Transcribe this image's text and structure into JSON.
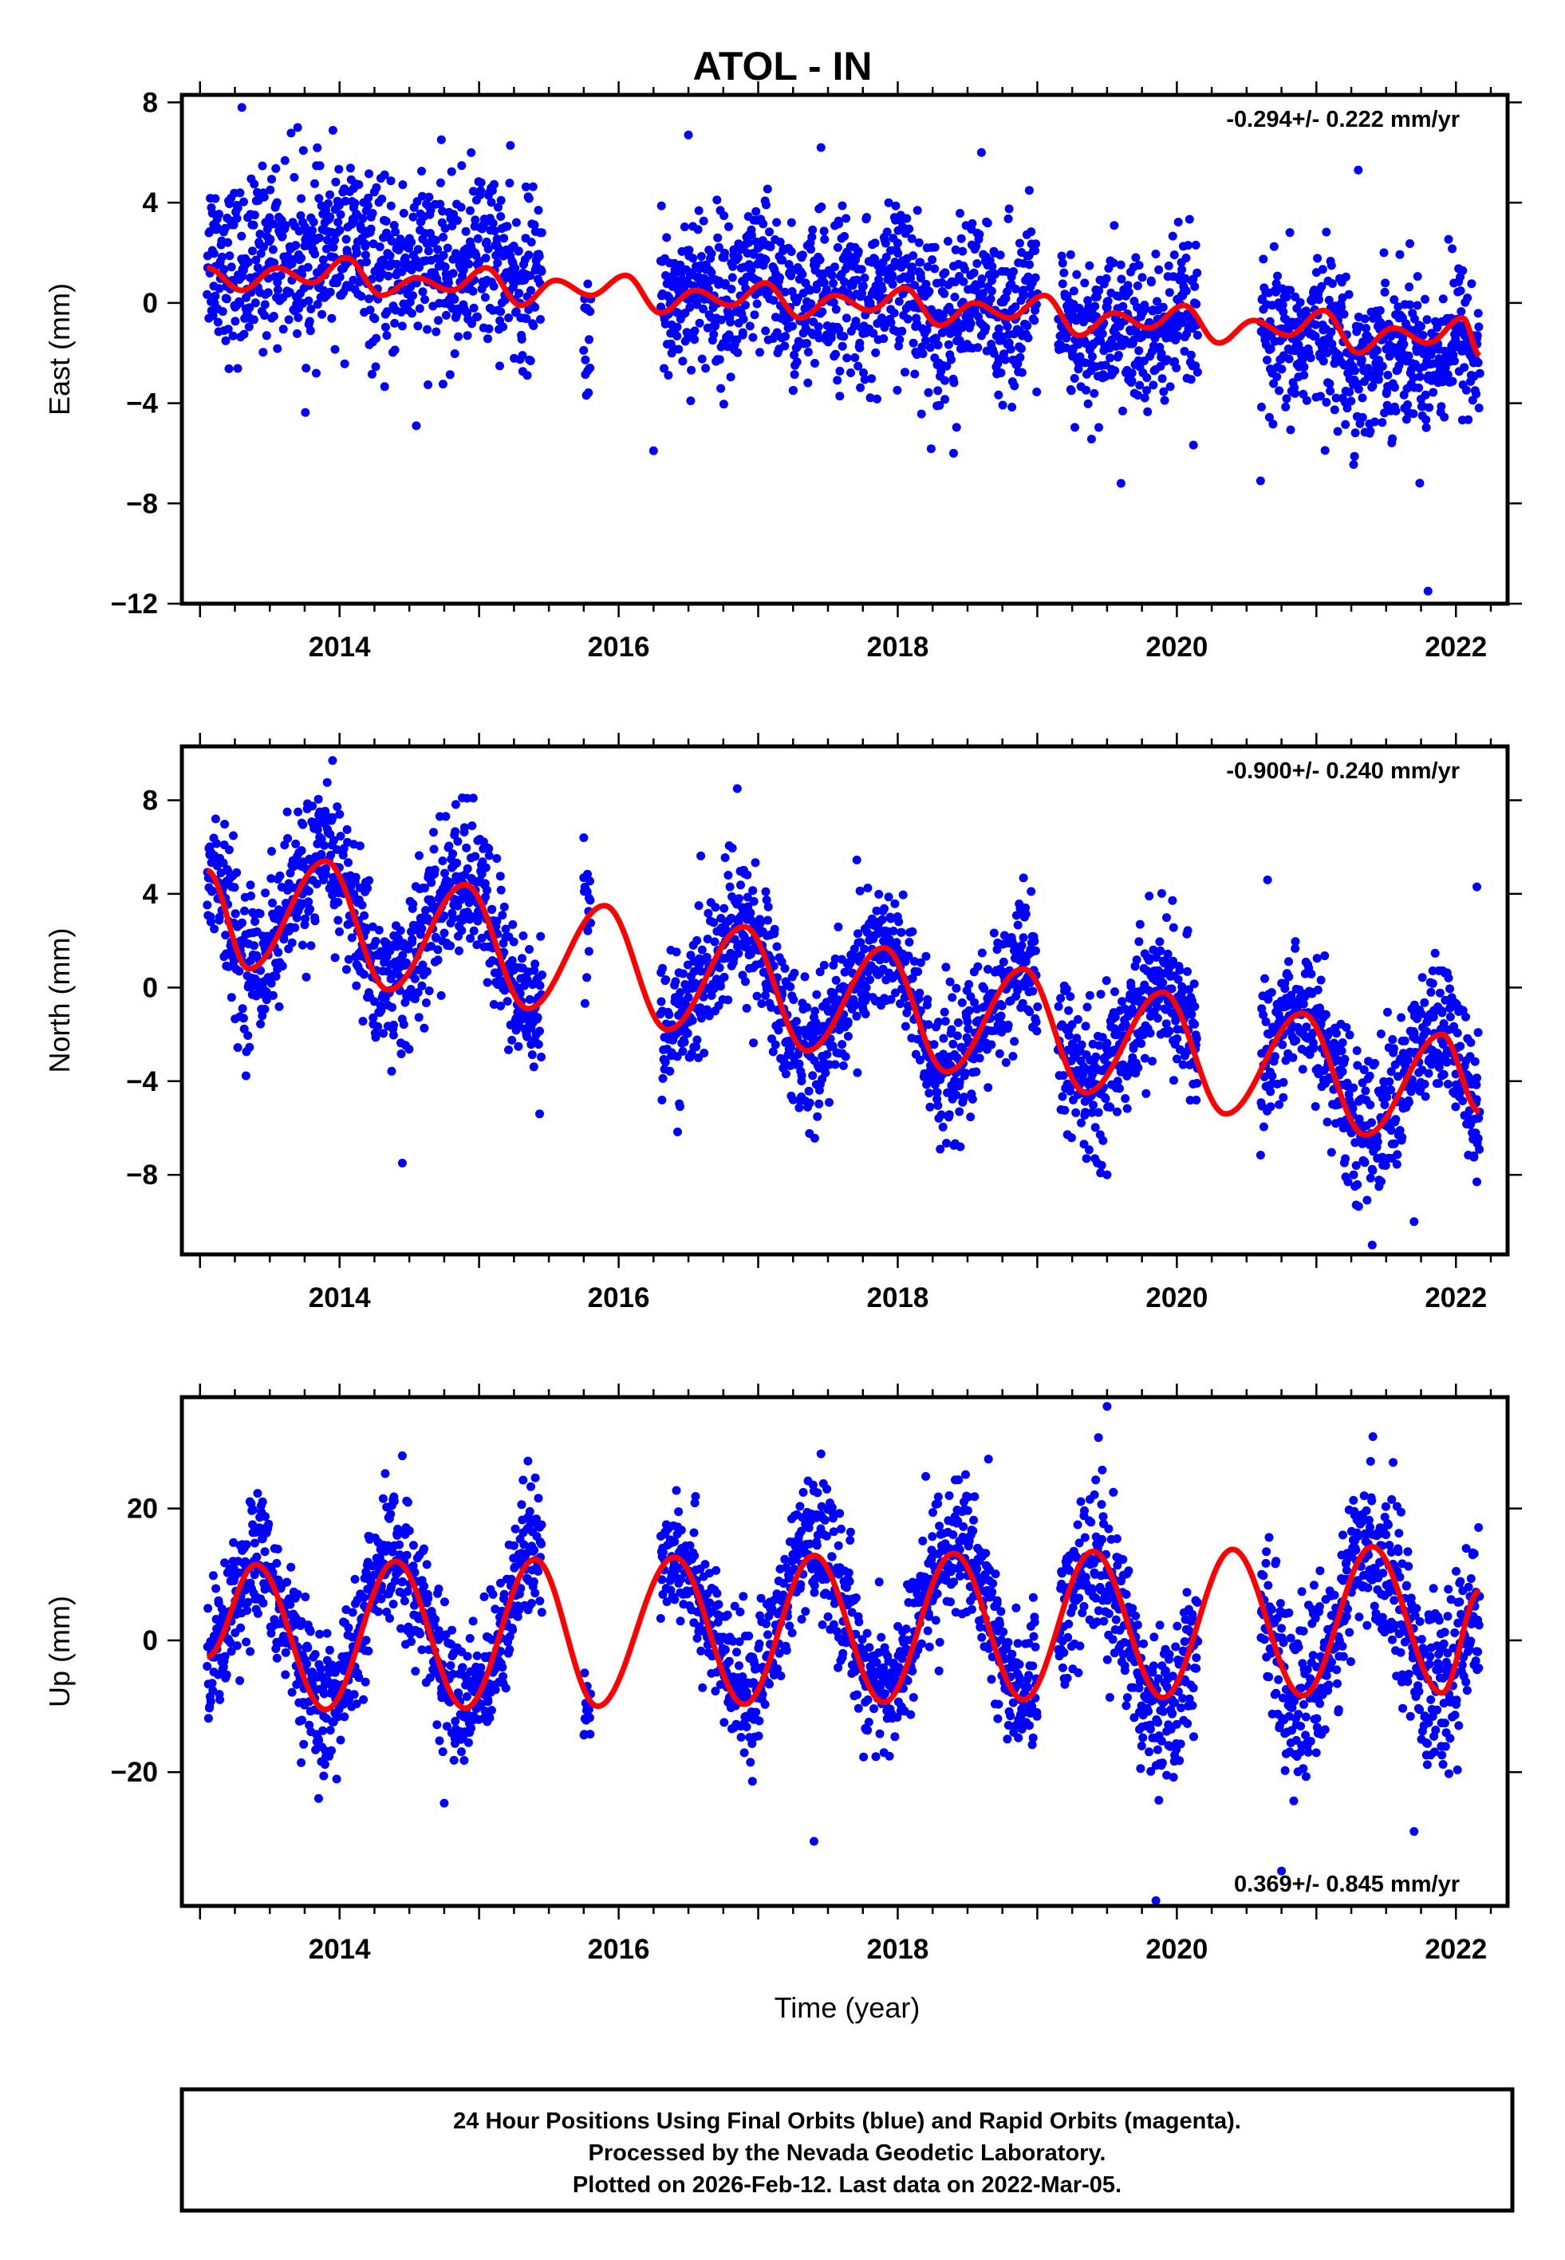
{
  "title": "ATOL - IN",
  "footer": {
    "lines": [
      "24 Hour Positions Using Final Orbits (blue) and Rapid Orbits (magenta).",
      "Processed by the Nevada Geodetic Laboratory.",
      "Plotted on 2026-Feb-12. Last data on 2022-Mar-05."
    ]
  },
  "colors": {
    "points": "#0000ff",
    "model": "#ff0000",
    "axes": "#000000"
  },
  "chart_data": [
    {
      "type": "scatter",
      "component": "East",
      "ylabel": "East (mm)",
      "xlabel": "",
      "rate_text": "-0.294+/- 0.222 mm/yr",
      "rate_position": "top-right",
      "xlim": [
        2012.87,
        2022.37
      ],
      "ylim": [
        -12.0,
        8.3
      ],
      "xticks": [
        2014,
        2016,
        2018,
        2020,
        2022
      ],
      "xtick_labels": [
        "2014",
        "2016",
        "2018",
        "2020",
        "2022"
      ],
      "yticks": [
        8,
        4,
        0,
        -4,
        -8,
        -12
      ],
      "ytick_labels": [
        "8",
        "4",
        "0",
        "−4",
        "−8",
        "−12"
      ],
      "model": {
        "name": "fit",
        "x": [
          2013.05,
          2013.3,
          2013.55,
          2013.8,
          2014.05,
          2014.3,
          2014.55,
          2014.8,
          2015.05,
          2015.3,
          2015.55,
          2015.8,
          2016.05,
          2016.3,
          2016.55,
          2016.8,
          2017.05,
          2017.3,
          2017.55,
          2017.8,
          2018.05,
          2018.3,
          2018.55,
          2018.8,
          2019.05,
          2019.3,
          2019.55,
          2019.8,
          2020.05,
          2020.3,
          2020.55,
          2020.8,
          2021.05,
          2021.3,
          2021.55,
          2021.8,
          2022.05,
          2022.17
        ],
        "y": [
          1.4,
          0.5,
          1.4,
          0.8,
          1.8,
          0.3,
          1.0,
          0.5,
          1.4,
          -0.1,
          0.9,
          0.3,
          1.1,
          -0.4,
          0.5,
          -0.1,
          0.8,
          -0.6,
          0.3,
          -0.3,
          0.6,
          -0.9,
          0.0,
          -0.6,
          0.3,
          -1.3,
          -0.4,
          -1.0,
          -0.1,
          -1.6,
          -0.7,
          -1.3,
          -0.3,
          -2.0,
          -1.0,
          -1.6,
          -0.6,
          -2.1
        ]
      },
      "data_segments": [
        {
          "start": 2013.05,
          "end": 2015.45,
          "center_offset": 0.7,
          "spread": 1.7
        },
        {
          "start": 2015.75,
          "end": 2015.8,
          "center_offset": -1.5,
          "spread": 1.2
        },
        {
          "start": 2016.3,
          "end": 2019.0,
          "center_offset": 0.2,
          "spread": 1.6
        },
        {
          "start": 2019.15,
          "end": 2020.15,
          "center_offset": -0.5,
          "spread": 1.6
        },
        {
          "start": 2020.6,
          "end": 2022.17,
          "center_offset": -0.6,
          "spread": 1.5
        }
      ],
      "outliers": [
        {
          "x": 2013.3,
          "y": 7.8
        },
        {
          "x": 2013.7,
          "y": 7.0
        },
        {
          "x": 2016.5,
          "y": 6.7
        },
        {
          "x": 2017.45,
          "y": 6.2
        },
        {
          "x": 2018.6,
          "y": 6.0
        },
        {
          "x": 2021.3,
          "y": 5.3
        },
        {
          "x": 2016.25,
          "y": -5.9
        },
        {
          "x": 2018.4,
          "y": -6.0
        },
        {
          "x": 2019.6,
          "y": -7.2
        },
        {
          "x": 2020.6,
          "y": -7.1
        },
        {
          "x": 2021.8,
          "y": -11.5
        },
        {
          "x": 2014.55,
          "y": -4.9
        }
      ]
    },
    {
      "type": "scatter",
      "component": "North",
      "ylabel": "North (mm)",
      "xlabel": "",
      "rate_text": "-0.900+/- 0.240 mm/yr",
      "rate_position": "top-right",
      "xlim": [
        2012.87,
        2022.37
      ],
      "ylim": [
        -11.4,
        10.3
      ],
      "xticks": [
        2014,
        2016,
        2018,
        2020,
        2022
      ],
      "xtick_labels": [
        "2014",
        "2016",
        "2018",
        "2020",
        "2022"
      ],
      "yticks": [
        8,
        4,
        0,
        -4,
        -8
      ],
      "ytick_labels": [
        "8",
        "4",
        "0",
        "−4",
        "−8"
      ],
      "model": {
        "name": "fit",
        "x": [
          2013.05,
          2013.35,
          2013.9,
          2014.35,
          2014.9,
          2015.35,
          2015.9,
          2016.35,
          2016.9,
          2017.35,
          2017.9,
          2018.35,
          2018.9,
          2019.35,
          2019.9,
          2020.35,
          2020.9,
          2021.35,
          2021.9,
          2022.17
        ],
        "y": [
          5.0,
          0.8,
          5.4,
          -0.1,
          4.4,
          -0.9,
          3.5,
          -1.8,
          2.6,
          -2.7,
          1.7,
          -3.6,
          0.8,
          -4.5,
          -0.2,
          -5.4,
          -1.1,
          -6.3,
          -2.0,
          -5.3
        ]
      },
      "data_segments": [
        {
          "start": 2013.05,
          "end": 2015.45,
          "center_offset": 0.2,
          "spread": 1.6
        },
        {
          "start": 2015.75,
          "end": 2015.8,
          "center_offset": 0.0,
          "spread": 1.4
        },
        {
          "start": 2016.3,
          "end": 2019.0,
          "center_offset": 0.0,
          "spread": 1.5
        },
        {
          "start": 2019.15,
          "end": 2020.15,
          "center_offset": 0.3,
          "spread": 1.5
        },
        {
          "start": 2020.6,
          "end": 2022.17,
          "center_offset": 0.2,
          "spread": 1.5
        }
      ],
      "outliers": [
        {
          "x": 2013.95,
          "y": 9.7
        },
        {
          "x": 2016.85,
          "y": 8.5
        },
        {
          "x": 2015.75,
          "y": 6.4
        },
        {
          "x": 2020.65,
          "y": 4.6
        },
        {
          "x": 2022.15,
          "y": 4.3
        },
        {
          "x": 2014.45,
          "y": -7.5
        },
        {
          "x": 2019.5,
          "y": -8.0
        },
        {
          "x": 2021.4,
          "y": -11.0
        },
        {
          "x": 2021.7,
          "y": -10.0
        },
        {
          "x": 2022.15,
          "y": -8.3
        }
      ]
    },
    {
      "type": "scatter",
      "component": "Up",
      "ylabel": "Up (mm)",
      "xlabel": "Time (year)",
      "rate_text": "0.369+/- 0.845 mm/yr",
      "rate_position": "bottom-right",
      "xlim": [
        2012.87,
        2022.37
      ],
      "ylim": [
        -40.3,
        36.9
      ],
      "xticks": [
        2014,
        2016,
        2018,
        2020,
        2022
      ],
      "xtick_labels": [
        "2014",
        "2016",
        "2018",
        "2020",
        "2022"
      ],
      "yticks": [
        20,
        0,
        -20
      ],
      "ytick_labels": [
        "20",
        "0",
        "−20"
      ],
      "model": {
        "name": "fit",
        "x": [
          2013.05,
          2013.4,
          2013.9,
          2014.4,
          2014.9,
          2015.4,
          2015.85,
          2016.4,
          2016.9,
          2017.4,
          2017.9,
          2018.4,
          2018.9,
          2019.4,
          2019.9,
          2020.4,
          2020.9,
          2021.4,
          2021.9,
          2022.17
        ],
        "y": [
          -2.5,
          11.5,
          -10.5,
          12.0,
          -10.3,
          12.3,
          -10.0,
          12.6,
          -9.7,
          12.9,
          -9.4,
          13.2,
          -9.0,
          13.5,
          -8.7,
          13.8,
          -8.4,
          14.2,
          -8.0,
          7.5
        ]
      },
      "data_segments": [
        {
          "start": 2013.05,
          "end": 2015.45,
          "center_offset": 0.5,
          "spread": 5.0
        },
        {
          "start": 2015.75,
          "end": 2015.8,
          "center_offset": -2.0,
          "spread": 3.0
        },
        {
          "start": 2016.3,
          "end": 2019.0,
          "center_offset": 1.5,
          "spread": 5.0
        },
        {
          "start": 2019.15,
          "end": 2020.15,
          "center_offset": -1.5,
          "spread": 6.0
        },
        {
          "start": 2020.6,
          "end": 2022.17,
          "center_offset": -0.5,
          "spread": 6.0
        }
      ],
      "outliers": [
        {
          "x": 2019.5,
          "y": 35.5
        },
        {
          "x": 2014.45,
          "y": 28.0
        },
        {
          "x": 2017.45,
          "y": 28.3
        },
        {
          "x": 2018.65,
          "y": 27.5
        },
        {
          "x": 2015.35,
          "y": 27.2
        },
        {
          "x": 2021.55,
          "y": 27.0
        },
        {
          "x": 2013.85,
          "y": -24.0
        },
        {
          "x": 2014.75,
          "y": -24.7
        },
        {
          "x": 2017.4,
          "y": -30.5
        },
        {
          "x": 2019.85,
          "y": -39.5
        },
        {
          "x": 2020.75,
          "y": -35.0
        },
        {
          "x": 2021.7,
          "y": -29.0
        }
      ]
    }
  ]
}
